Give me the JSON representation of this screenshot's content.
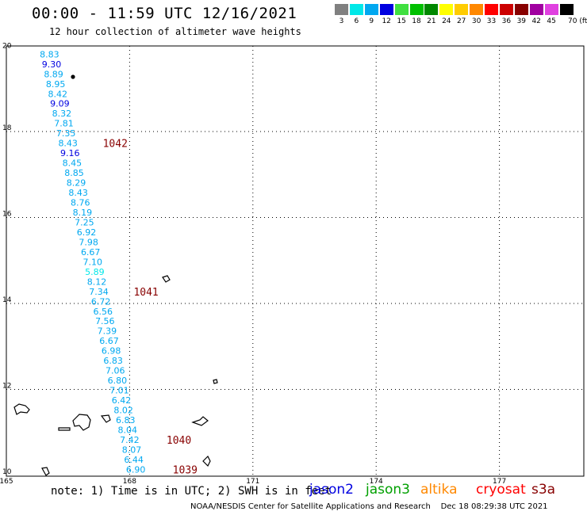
{
  "title": "00:00 - 11:59 UTC 12/16/2021",
  "subtitle": "12 hour collection of altimeter wave heights",
  "legend": {
    "unit": "70 (ft)",
    "bins": [
      {
        "label": "3",
        "color": "#808080"
      },
      {
        "label": "6",
        "color": "#00e8e8"
      },
      {
        "label": "9",
        "color": "#00a8f0"
      },
      {
        "label": "12",
        "color": "#0000e0"
      },
      {
        "label": "15",
        "color": "#40e040"
      },
      {
        "label": "18",
        "color": "#00c000"
      },
      {
        "label": "21",
        "color": "#008800"
      },
      {
        "label": "24",
        "color": "#ffff00"
      },
      {
        "label": "27",
        "color": "#ffcc00"
      },
      {
        "label": "30",
        "color": "#ff8800"
      },
      {
        "label": "33",
        "color": "#ff0000"
      },
      {
        "label": "36",
        "color": "#cc0000"
      },
      {
        "label": "39",
        "color": "#880000"
      },
      {
        "label": "42",
        "color": "#a000a0"
      },
      {
        "label": "45",
        "color": "#e040e0"
      },
      {
        "label": "",
        "color": "#000000"
      }
    ]
  },
  "axes": {
    "lon_ticks": [
      "165",
      "168",
      "171",
      "174",
      "177"
    ],
    "lat_ticks": [
      "10",
      "12",
      "14",
      "16",
      "18",
      "20"
    ]
  },
  "readings": [
    {
      "lat": 19.8,
      "lon": 166.05,
      "text": "8.83",
      "color": "#00a8f0"
    },
    {
      "lat": 19.57,
      "lon": 166.1,
      "text": "9.30",
      "color": "#0000e0"
    },
    {
      "lat": 19.34,
      "lon": 166.15,
      "text": "8.89",
      "color": "#00a8f0"
    },
    {
      "lat": 19.11,
      "lon": 166.2,
      "text": "8.95",
      "color": "#00a8f0"
    },
    {
      "lat": 18.88,
      "lon": 166.25,
      "text": "8.42",
      "color": "#00a8f0"
    },
    {
      "lat": 18.65,
      "lon": 166.3,
      "text": "9.09",
      "color": "#0000e0"
    },
    {
      "lat": 18.42,
      "lon": 166.35,
      "text": "8.32",
      "color": "#00a8f0"
    },
    {
      "lat": 18.19,
      "lon": 166.4,
      "text": "7.81",
      "color": "#00a8f0"
    },
    {
      "lat": 17.96,
      "lon": 166.45,
      "text": "7.35",
      "color": "#00a8f0"
    },
    {
      "lat": 17.73,
      "lon": 166.5,
      "text": "8.43",
      "color": "#00a8f0"
    },
    {
      "lat": 17.5,
      "lon": 166.55,
      "text": "9.16",
      "color": "#0000e0"
    },
    {
      "lat": 17.27,
      "lon": 166.6,
      "text": "8.45",
      "color": "#00a8f0"
    },
    {
      "lat": 17.04,
      "lon": 166.65,
      "text": "8.85",
      "color": "#00a8f0"
    },
    {
      "lat": 16.81,
      "lon": 166.7,
      "text": "8.29",
      "color": "#00a8f0"
    },
    {
      "lat": 16.58,
      "lon": 166.75,
      "text": "8.43",
      "color": "#00a8f0"
    },
    {
      "lat": 16.35,
      "lon": 166.8,
      "text": "8.76",
      "color": "#00a8f0"
    },
    {
      "lat": 16.12,
      "lon": 166.85,
      "text": "8.19",
      "color": "#00a8f0"
    },
    {
      "lat": 15.89,
      "lon": 166.9,
      "text": "7.25",
      "color": "#00a8f0"
    },
    {
      "lat": 15.66,
      "lon": 166.95,
      "text": "6.92",
      "color": "#00a8f0"
    },
    {
      "lat": 15.43,
      "lon": 167.0,
      "text": "7.98",
      "color": "#00a8f0"
    },
    {
      "lat": 15.2,
      "lon": 167.05,
      "text": "6.67",
      "color": "#00a8f0"
    },
    {
      "lat": 14.97,
      "lon": 167.1,
      "text": "7.10",
      "color": "#00a8f0"
    },
    {
      "lat": 14.74,
      "lon": 167.15,
      "text": "5.89",
      "color": "#00e8e8"
    },
    {
      "lat": 14.51,
      "lon": 167.2,
      "text": "8.12",
      "color": "#00a8f0"
    },
    {
      "lat": 14.28,
      "lon": 167.25,
      "text": "7.34",
      "color": "#00a8f0"
    },
    {
      "lat": 14.05,
      "lon": 167.3,
      "text": "6.72",
      "color": "#00a8f0"
    },
    {
      "lat": 13.82,
      "lon": 167.35,
      "text": "6.56",
      "color": "#00a8f0"
    },
    {
      "lat": 13.59,
      "lon": 167.4,
      "text": "7.56",
      "color": "#00a8f0"
    },
    {
      "lat": 13.36,
      "lon": 167.45,
      "text": "7.39",
      "color": "#00a8f0"
    },
    {
      "lat": 13.13,
      "lon": 167.5,
      "text": "6.67",
      "color": "#00a8f0"
    },
    {
      "lat": 12.9,
      "lon": 167.55,
      "text": "6.98",
      "color": "#00a8f0"
    },
    {
      "lat": 12.67,
      "lon": 167.6,
      "text": "6.83",
      "color": "#00a8f0"
    },
    {
      "lat": 12.44,
      "lon": 167.65,
      "text": "7.06",
      "color": "#00a8f0"
    },
    {
      "lat": 12.21,
      "lon": 167.7,
      "text": "6.80",
      "color": "#00a8f0"
    },
    {
      "lat": 11.98,
      "lon": 167.75,
      "text": "7.01",
      "color": "#00a8f0"
    },
    {
      "lat": 11.75,
      "lon": 167.8,
      "text": "6.42",
      "color": "#00a8f0"
    },
    {
      "lat": 11.52,
      "lon": 167.85,
      "text": "8.02",
      "color": "#00a8f0"
    },
    {
      "lat": 11.29,
      "lon": 167.9,
      "text": "6.83",
      "color": "#00a8f0"
    },
    {
      "lat": 11.06,
      "lon": 167.95,
      "text": "8.04",
      "color": "#00a8f0"
    },
    {
      "lat": 10.83,
      "lon": 168.0,
      "text": "7.42",
      "color": "#00a8f0"
    },
    {
      "lat": 10.6,
      "lon": 168.05,
      "text": "8.07",
      "color": "#00a8f0"
    },
    {
      "lat": 10.37,
      "lon": 168.1,
      "text": "6.44",
      "color": "#00a8f0"
    },
    {
      "lat": 10.14,
      "lon": 168.15,
      "text": "6.90",
      "color": "#00a8f0"
    }
  ],
  "pressure_labels": [
    {
      "lat": 17.73,
      "lon": 167.65,
      "text": "1042",
      "color": "#880000"
    },
    {
      "lat": 14.28,
      "lon": 168.4,
      "text": "1041",
      "color": "#880000"
    },
    {
      "lat": 10.83,
      "lon": 169.2,
      "text": "1040",
      "color": "#880000"
    },
    {
      "lat": 10.14,
      "lon": 169.35,
      "text": "1039",
      "color": "#880000"
    }
  ],
  "footer": {
    "note": "note: 1) Time is in UTC; 2) SWH is in feet",
    "satellites": [
      {
        "name": "jason2",
        "color": "#0000e0"
      },
      {
        "name": "jason3",
        "color": "#00a000"
      },
      {
        "name": "altika",
        "color": "#ff8800"
      },
      {
        "name": "cryosat",
        "color": "#ff0000"
      },
      {
        "name": "s3a",
        "color": "#880000"
      }
    ],
    "credit": "NOAA/NESDIS Center for Satellite Applications and Research    Dec 18 08:29:38 UTC 2021"
  }
}
